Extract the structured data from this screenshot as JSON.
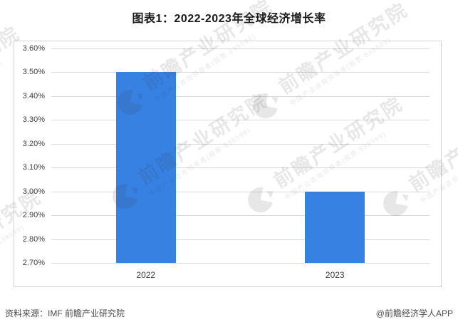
{
  "page": {
    "title": "图表1：2022-2023年全球经济增长率"
  },
  "chart_data": {
    "type": "bar",
    "title": "图表1：2022-2023年全球经济增长率",
    "categories": [
      "2022",
      "2023"
    ],
    "values": [
      3.5,
      3.0
    ],
    "value_unit": "%",
    "xlabel": "",
    "ylabel": "",
    "ylim": [
      2.7,
      3.6
    ],
    "ytick_step": 0.1,
    "ytick_labels": [
      "3.60%",
      "3.50%",
      "3.40%",
      "3.30%",
      "3.20%",
      "3.10%",
      "3.00%",
      "2.90%",
      "2.80%",
      "2.70%"
    ],
    "grid": true,
    "legend": "none",
    "bar_color": "#3781E3",
    "baseline": 2.7
  },
  "watermark": {
    "logo": "qianzhan-circle-logo-icon",
    "text": "前瞻产业研究院",
    "subtext": "中国产业咨询领导者(股票:839599)"
  },
  "footer": {
    "source": "资料来源：IMF 前瞻产业研究院",
    "credit": "@前瞻经济学人APP"
  },
  "colors": {
    "bar": "#3781E3",
    "gridline": "#DADADA",
    "box_border": "#D4D4D4",
    "axis_text": "#404040",
    "title_text": "#1A1A1A",
    "footer_text": "#4D4D4D"
  }
}
